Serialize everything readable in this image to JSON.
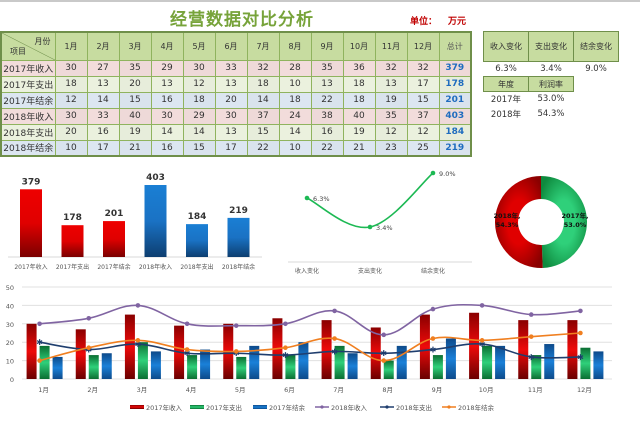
{
  "header": {
    "title": "经营数据对比分析",
    "unit_label": "单位：",
    "unit_value": "万元"
  },
  "main_table": {
    "corner_month": "月份",
    "corner_item": "项目",
    "columns": [
      "1月",
      "2月",
      "3月",
      "4月",
      "5月",
      "6月",
      "7月",
      "8月",
      "9月",
      "10月",
      "11月",
      "12月",
      "总计"
    ],
    "rows": [
      {
        "label": "2017年收入",
        "values": [
          30,
          27,
          35,
          29,
          30,
          33,
          32,
          28,
          35,
          36,
          32,
          32
        ],
        "total": 379
      },
      {
        "label": "2017年支出",
        "values": [
          18,
          13,
          20,
          13,
          12,
          13,
          18,
          10,
          13,
          18,
          13,
          17
        ],
        "total": 178
      },
      {
        "label": "2017年结余",
        "values": [
          12,
          14,
          15,
          16,
          18,
          20,
          14,
          18,
          22,
          18,
          19,
          15
        ],
        "total": 201
      },
      {
        "label": "2018年收入",
        "values": [
          30,
          33,
          40,
          30,
          29,
          30,
          37,
          24,
          38,
          40,
          35,
          37
        ],
        "total": 403
      },
      {
        "label": "2018年支出",
        "values": [
          20,
          16,
          19,
          14,
          14,
          13,
          15,
          14,
          16,
          19,
          12,
          12
        ],
        "total": 184
      },
      {
        "label": "2018年结余",
        "values": [
          10,
          17,
          21,
          16,
          15,
          17,
          22,
          10,
          22,
          21,
          23,
          25
        ],
        "total": 219
      }
    ]
  },
  "change_table": {
    "headers": [
      "收入变化",
      "支出变化",
      "结余变化"
    ],
    "values": [
      "6.3%",
      "3.4%",
      "9.0%"
    ]
  },
  "profit_table": {
    "headers": [
      "年度",
      "利润率"
    ],
    "rows": [
      {
        "year": "2017年",
        "rate": "53.0%"
      },
      {
        "year": "2018年",
        "rate": "54.3%"
      }
    ]
  },
  "colors": {
    "title": "#77a33a",
    "header_bg": "#c7dca0",
    "border": "#6f8f4a",
    "income_row": "#f2dcdb",
    "expense_row": "#ebf1de",
    "balance_row": "#dce6f1",
    "total_text": "#1f6ec2",
    "red": "#e00000",
    "green": "#1db954",
    "blue": "#1a72c4",
    "purple": "#8064a2",
    "navy": "#1f3e6e",
    "orange": "#f07f20"
  },
  "chart_data": [
    {
      "type": "bar",
      "title": "",
      "categories": [
        "2017年收入",
        "2017年支出",
        "2017年结余",
        "2018年收入",
        "2018年支出",
        "2018年结余"
      ],
      "values": [
        379,
        178,
        201,
        403,
        184,
        219
      ],
      "bar_colors": [
        "#e00000",
        "#e00000",
        "#e00000",
        "#1a72c4",
        "#1a72c4",
        "#1a72c4"
      ],
      "data_labels": [
        "379",
        "178",
        "201",
        "403",
        "184",
        "219"
      ],
      "grid": false
    },
    {
      "type": "line",
      "title": "",
      "categories": [
        "收入变化",
        "支出变化",
        "结余变化"
      ],
      "values": [
        6.3,
        3.4,
        9.0
      ],
      "data_labels": [
        "6.3%",
        "3.4%",
        "9.0%"
      ],
      "color": "#1db954",
      "smooth": true,
      "grid": false
    },
    {
      "type": "pie",
      "donut": true,
      "labels": [
        "2017年",
        "2018年"
      ],
      "values": [
        53.0,
        54.3
      ],
      "data_labels": [
        "2017年,\n53.0%",
        "2018年,\n54.3%"
      ],
      "colors": [
        "#1db954",
        "#d00000"
      ]
    },
    {
      "type": "bar",
      "title": "",
      "categories": [
        "1月",
        "2月",
        "3月",
        "4月",
        "5月",
        "6月",
        "7月",
        "8月",
        "9月",
        "10月",
        "11月",
        "12月"
      ],
      "series": [
        {
          "name": "2017年收入",
          "kind": "bar",
          "values": [
            30,
            27,
            35,
            29,
            30,
            33,
            32,
            28,
            35,
            36,
            32,
            32
          ]
        },
        {
          "name": "2017年支出",
          "kind": "bar",
          "values": [
            18,
            13,
            20,
            13,
            12,
            13,
            18,
            10,
            13,
            18,
            13,
            17
          ]
        },
        {
          "name": "2017年结余",
          "kind": "bar",
          "values": [
            12,
            14,
            15,
            16,
            18,
            20,
            14,
            18,
            22,
            18,
            19,
            15
          ]
        },
        {
          "name": "2018年收入",
          "kind": "line",
          "values": [
            30,
            33,
            40,
            30,
            29,
            30,
            37,
            24,
            38,
            40,
            35,
            37
          ]
        },
        {
          "name": "2018年支出",
          "kind": "line",
          "values": [
            20,
            16,
            19,
            14,
            14,
            13,
            15,
            14,
            16,
            19,
            12,
            12
          ]
        },
        {
          "name": "2018年结余",
          "kind": "line",
          "values": [
            10,
            17,
            21,
            16,
            15,
            17,
            22,
            10,
            22,
            21,
            23,
            25
          ]
        }
      ],
      "yticks": [
        0,
        10,
        20,
        30,
        40,
        50
      ],
      "ylim": [
        0,
        50
      ],
      "grid": true,
      "legend_position": "bottom"
    }
  ]
}
